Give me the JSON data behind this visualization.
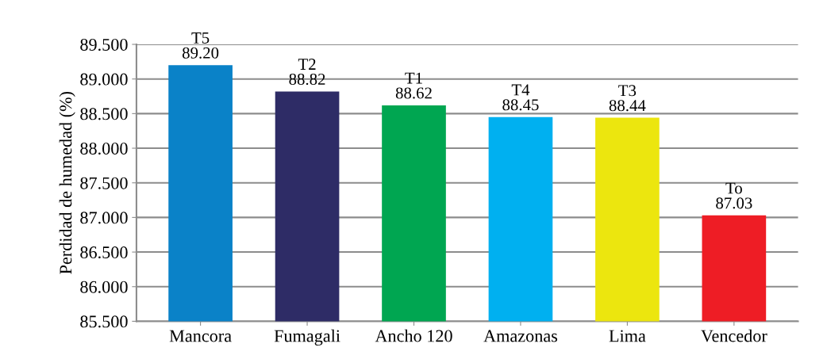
{
  "chart_data": {
    "type": "bar",
    "ylabel": "Perdidad de humedad (%)",
    "categories": [
      "Mancora",
      "Fumagali",
      "Ancho 120",
      "Amazonas",
      "Lima",
      "Vencedor"
    ],
    "values": [
      89.2,
      88.82,
      88.62,
      88.45,
      88.44,
      87.03
    ],
    "colors": [
      "#0a82c8",
      "#2e2c66",
      "#00a651",
      "#00b0f0",
      "#ece60e",
      "#ee1d25"
    ],
    "value_labels": [
      "T5\n89.20",
      "T2\n88.82",
      "T1\n88.62",
      "T4\n88.45",
      "T3\n88.44",
      "To\n87.03"
    ],
    "ylim": [
      85.5,
      89.5
    ],
    "yticks": [
      {
        "value": 85.5,
        "label": "85.500"
      },
      {
        "value": 86.0,
        "label": "86.000"
      },
      {
        "value": 86.5,
        "label": "86.500"
      },
      {
        "value": 87.0,
        "label": "87.000"
      },
      {
        "value": 87.5,
        "label": "87.500"
      },
      {
        "value": 88.0,
        "label": "88.000"
      },
      {
        "value": 88.5,
        "label": "88.500"
      },
      {
        "value": 89.0,
        "label": "89.000"
      },
      {
        "value": 89.5,
        "label": "89.500"
      }
    ],
    "grid": "y"
  }
}
